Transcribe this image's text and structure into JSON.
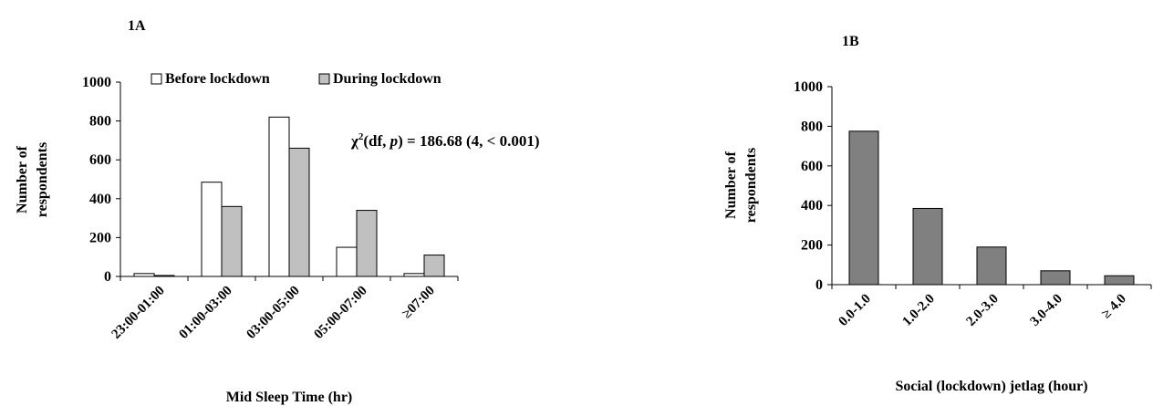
{
  "chart_data": [
    {
      "panel": "1A",
      "type": "bar",
      "xlabel": "Mid  Sleep Time (hr)",
      "ylabel": [
        "Number  of",
        "respondents"
      ],
      "ylim": [
        0,
        1000
      ],
      "yticks": [
        "0",
        "200",
        "400",
        "600",
        "800",
        "1000"
      ],
      "categories": [
        "23:00-01:00",
        "01:00-03:00",
        "03:00-05:00",
        "05:00-07:00",
        "≥07:00"
      ],
      "series": [
        {
          "name": "Before lockdown",
          "color": "#ffffff",
          "values": [
            15,
            485,
            820,
            150,
            15
          ]
        },
        {
          "name": "During lockdown",
          "color": "#c0c0c0",
          "values": [
            5,
            360,
            660,
            340,
            110
          ]
        }
      ],
      "legend": {
        "placement": "top"
      },
      "annotation": {
        "symbol": "χ",
        "sup": "2",
        "pre": "(df, ",
        "italic": "p",
        "post": ") = 186.68  (4, < 0.001)"
      }
    },
    {
      "panel": "1B",
      "type": "bar",
      "xlabel": "Social (lockdown)  jetlag (hour)",
      "ylabel": [
        "Number  of",
        "respondents"
      ],
      "ylim": [
        0,
        1000
      ],
      "yticks": [
        "0",
        "200",
        "400",
        "600",
        "800",
        "1000"
      ],
      "categories": [
        "0.0-1.0",
        "1.0-2.0",
        "2.0-3.0",
        "3.0-4.0",
        "≥ 4.0"
      ],
      "series": [
        {
          "color": "#808080",
          "values": [
            775,
            385,
            190,
            70,
            45
          ]
        }
      ]
    }
  ]
}
